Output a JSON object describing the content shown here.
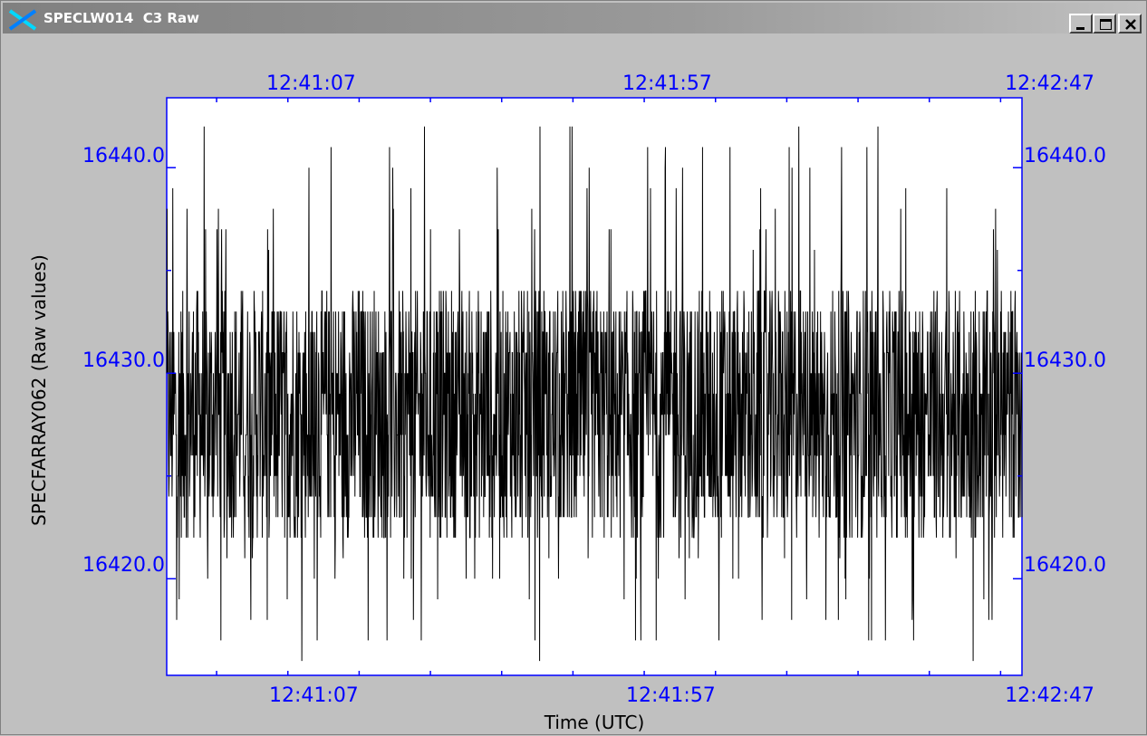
{
  "window": {
    "title": "SPECLW014  C3 Raw",
    "controls": [
      "minimize",
      "maximize",
      "close"
    ]
  },
  "colors": {
    "axis": "#0000ff",
    "series": "#000000",
    "plot_background": "#ffffff",
    "window_background": "#c0c0c0"
  },
  "chart_data": {
    "type": "line",
    "title": "",
    "xlabel": "Time (UTC)",
    "ylabel": "SPECFARRAY062 (Raw values)",
    "x_tick_labels": [
      "12:41:07",
      "12:41:57",
      "12:42:47"
    ],
    "x_tick_labels_top": [
      "12:41:07",
      "12:41:57",
      "12:42:47"
    ],
    "y_tick_labels": [
      "16440.0",
      "16430.0",
      "16420.0"
    ],
    "y_tick_labels_right": [
      "16440.0",
      "16430.0",
      "16420.0"
    ],
    "xlim": [
      "12:40:53",
      "12:42:53"
    ],
    "ylim": [
      16415.3,
      16443.4
    ],
    "grid": false,
    "legend": "none",
    "series": [
      {
        "n_points": 2400,
        "baseline": 16428,
        "typical_range": [
          16423,
          16435
        ],
        "min": 16416,
        "max": 16442
      }
    ]
  }
}
